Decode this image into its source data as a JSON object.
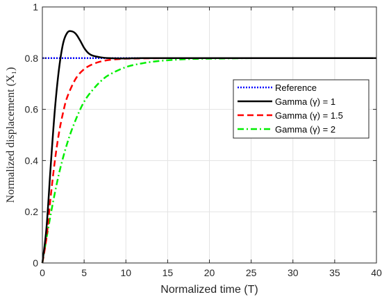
{
  "chart_data": {
    "type": "line",
    "xlabel": "Normalized time (T)",
    "ylabel": "Normalized displacement (X₁)",
    "xlim": [
      0,
      40
    ],
    "ylim": [
      0,
      1
    ],
    "xticks": [
      0,
      5,
      10,
      15,
      20,
      25,
      30,
      35,
      40
    ],
    "yticks": [
      0,
      0.2,
      0.4,
      0.6,
      0.8,
      1
    ],
    "xtick_labels": [
      "0",
      "5",
      "10",
      "15",
      "20",
      "25",
      "30",
      "35",
      "40"
    ],
    "ytick_labels": [
      "0",
      "0.2",
      "0.4",
      "0.6",
      "0.8",
      "1"
    ],
    "grid": true,
    "legend_position": "right",
    "series": [
      {
        "name": "Reference",
        "color": "#0000ff",
        "dash": "dotted",
        "x": [
          0,
          40
        ],
        "y": [
          0.8,
          0.8
        ]
      },
      {
        "name": "Gamma (γ) = 1",
        "color": "#000000",
        "dash": "solid",
        "x": [
          0,
          0.5,
          1,
          1.5,
          2,
          2.5,
          3,
          3.5,
          4,
          4.5,
          5,
          5.5,
          6,
          7,
          8,
          9,
          10,
          12,
          15,
          20,
          40
        ],
        "y": [
          0,
          0.14,
          0.38,
          0.6,
          0.76,
          0.86,
          0.9,
          0.905,
          0.895,
          0.87,
          0.84,
          0.82,
          0.81,
          0.803,
          0.8,
          0.799,
          0.799,
          0.8,
          0.8,
          0.8,
          0.8
        ]
      },
      {
        "name": "Gamma (γ) = 1.5",
        "color": "#ff0000",
        "dash": "dashed",
        "x": [
          0,
          0.5,
          1,
          1.5,
          2,
          2.5,
          3,
          4,
          5,
          6,
          7,
          8,
          9,
          10,
          12,
          15,
          20,
          25,
          40
        ],
        "y": [
          0,
          0.1,
          0.26,
          0.4,
          0.51,
          0.59,
          0.65,
          0.72,
          0.757,
          0.776,
          0.787,
          0.793,
          0.796,
          0.798,
          0.799,
          0.8,
          0.8,
          0.8,
          0.8
        ]
      },
      {
        "name": "Gamma (γ) = 2",
        "color": "#00ee00",
        "dash": "dashdot",
        "x": [
          0,
          1,
          2,
          3,
          4,
          5,
          6,
          7,
          8,
          10,
          12,
          14,
          16,
          18,
          20,
          25,
          30,
          40
        ],
        "y": [
          0,
          0.19,
          0.35,
          0.47,
          0.56,
          0.63,
          0.675,
          0.71,
          0.735,
          0.765,
          0.78,
          0.789,
          0.794,
          0.797,
          0.798,
          0.8,
          0.8,
          0.8
        ]
      }
    ]
  }
}
